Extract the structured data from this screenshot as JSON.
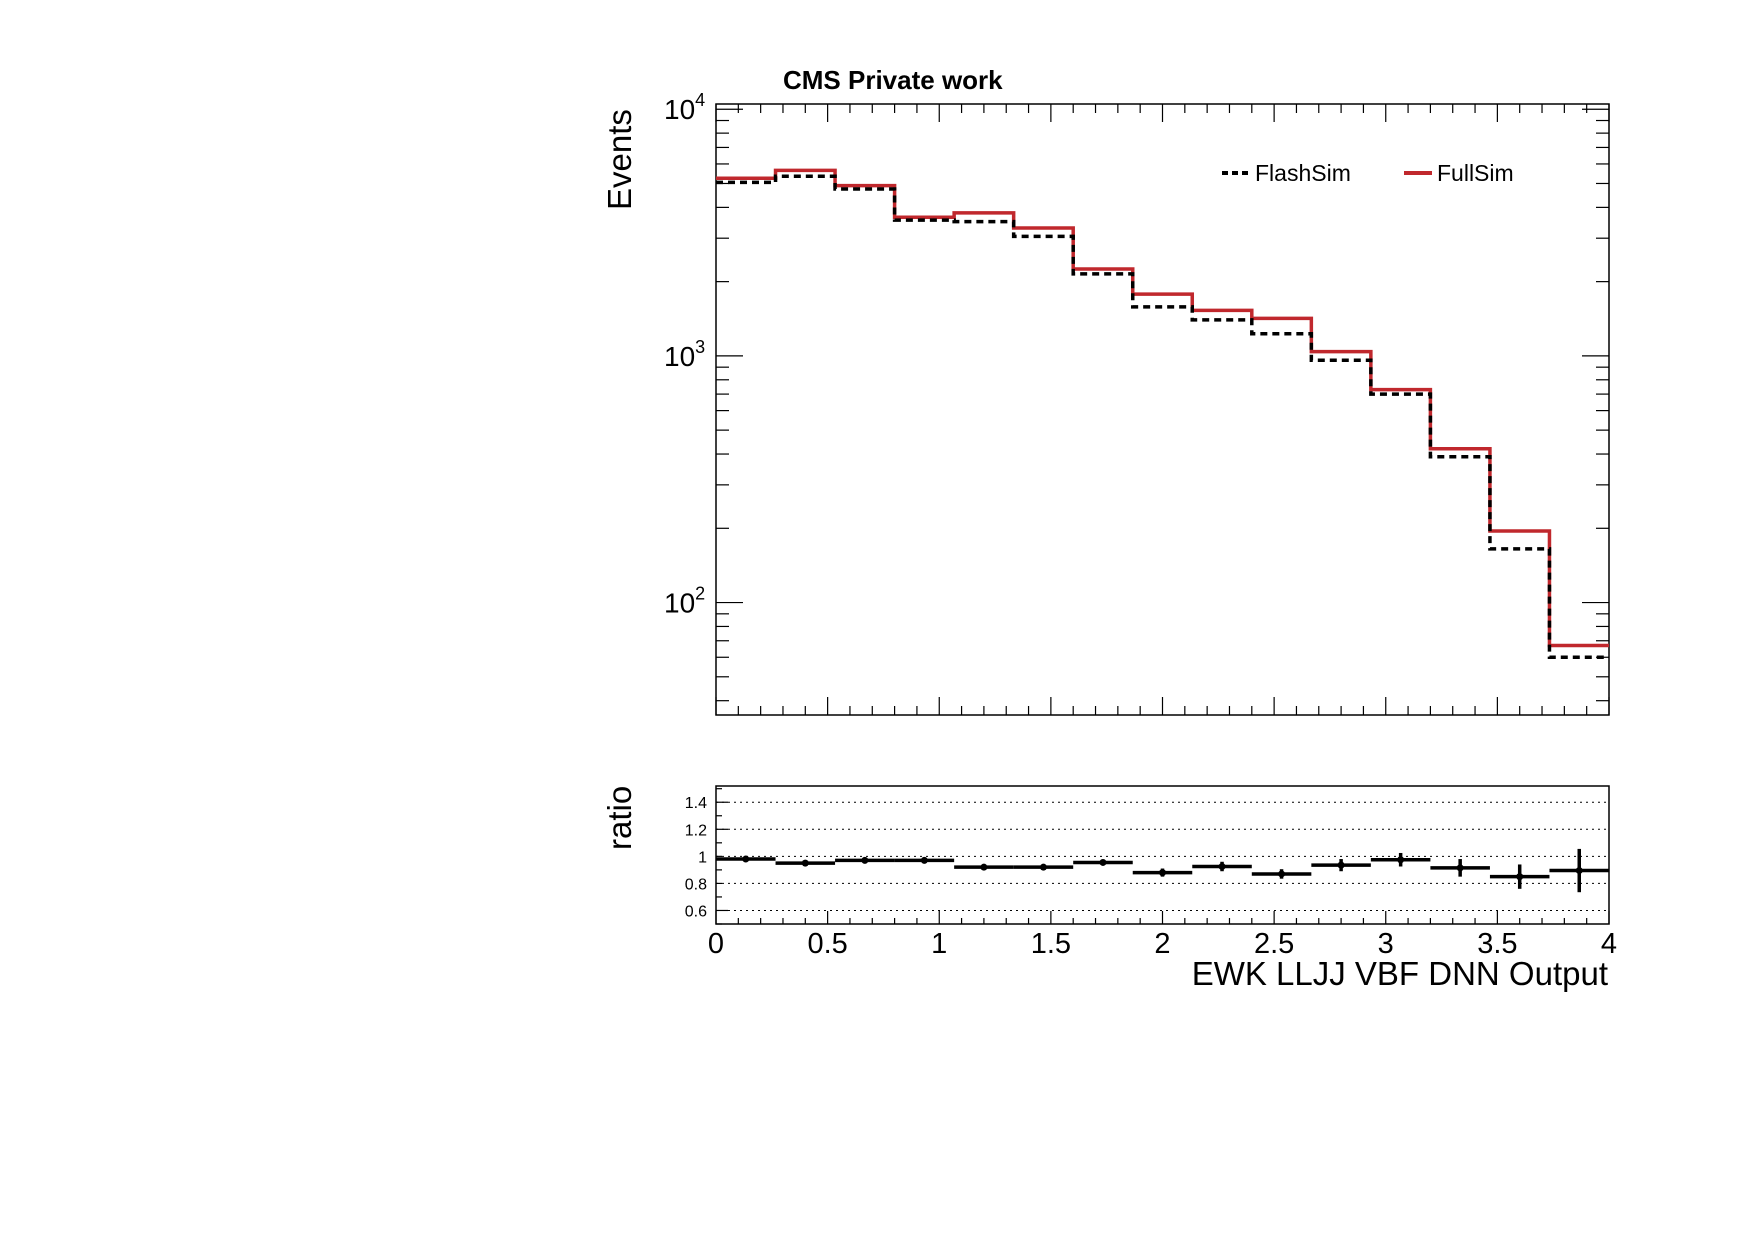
{
  "chart_data": [
    {
      "type": "line",
      "drawstyle": "steps",
      "title": "CMS Private work",
      "xlabel": "EWK LLJJ VBF DNN Output",
      "ylabel": "Events",
      "yscale": "log",
      "xlim": [
        0,
        4
      ],
      "ylim": [
        35,
        10500
      ],
      "x_tick_labels": [
        "0",
        "0.5",
        "1",
        "1.5",
        "2",
        "2.5",
        "3",
        "3.5",
        "4"
      ],
      "y_tick_labels": [
        {
          "base": "10",
          "exp": "2"
        },
        {
          "base": "10",
          "exp": "3"
        },
        {
          "base": "10",
          "exp": "4"
        }
      ],
      "bin_edges": [
        0,
        0.2667,
        0.5333,
        0.8,
        1.0667,
        1.3333,
        1.6,
        1.8667,
        2.1333,
        2.4,
        2.6667,
        2.9333,
        3.2,
        3.4667,
        3.7333,
        4.0
      ],
      "legend": {
        "position": "top-right",
        "columns": 2
      },
      "series": [
        {
          "name": "FlashSim",
          "style": "dashed",
          "color": "#000000",
          "values": [
            5050,
            5350,
            4750,
            3550,
            3500,
            3050,
            2150,
            1580,
            1400,
            1230,
            960,
            700,
            390,
            165,
            60
          ]
        },
        {
          "name": "FullSim",
          "style": "solid",
          "color": "#c0282d",
          "values": [
            5250,
            5650,
            4900,
            3650,
            3800,
            3300,
            2250,
            1780,
            1530,
            1420,
            1040,
            730,
            420,
            195,
            67
          ]
        }
      ]
    },
    {
      "type": "scatter",
      "with_error_bars": true,
      "xlabel": "EWK LLJJ VBF DNN Output",
      "ylabel": "ratio",
      "xlim": [
        0,
        4
      ],
      "ylim": [
        0.5,
        1.52
      ],
      "y_tick_labels": [
        "0.6",
        "0.8",
        "1",
        "1.2",
        "1.4"
      ],
      "grid_y": true,
      "points": [
        {
          "x": 0.1333,
          "y": 0.98,
          "err": 0.015
        },
        {
          "x": 0.4,
          "y": 0.95,
          "err": 0.015
        },
        {
          "x": 0.6667,
          "y": 0.97,
          "err": 0.015
        },
        {
          "x": 0.9333,
          "y": 0.97,
          "err": 0.015
        },
        {
          "x": 1.2,
          "y": 0.92,
          "err": 0.015
        },
        {
          "x": 1.4667,
          "y": 0.92,
          "err": 0.02
        },
        {
          "x": 1.7333,
          "y": 0.955,
          "err": 0.02
        },
        {
          "x": 2.0,
          "y": 0.88,
          "err": 0.03
        },
        {
          "x": 2.2667,
          "y": 0.925,
          "err": 0.035
        },
        {
          "x": 2.5333,
          "y": 0.87,
          "err": 0.035
        },
        {
          "x": 2.8,
          "y": 0.935,
          "err": 0.045
        },
        {
          "x": 3.0667,
          "y": 0.975,
          "err": 0.05
        },
        {
          "x": 3.3333,
          "y": 0.915,
          "err": 0.065
        },
        {
          "x": 3.6,
          "y": 0.85,
          "err": 0.09
        },
        {
          "x": 3.8667,
          "y": 0.895,
          "err": 0.16
        }
      ]
    }
  ]
}
